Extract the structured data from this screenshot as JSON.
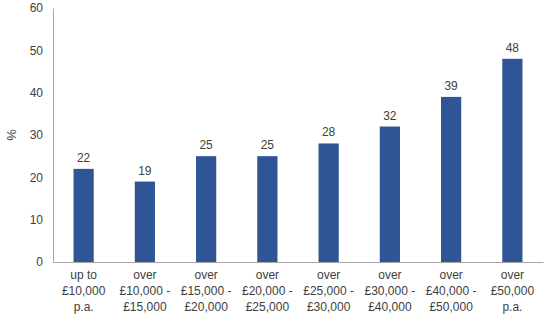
{
  "chart_data": {
    "type": "bar",
    "y_label": "%",
    "categories": [
      "up to\n£10,000\np.a.",
      "over\n£10,000 -\n£15,000",
      "over\n£15,000 -\n£20,000",
      "over\n£20,000 -\n£25,000",
      "over\n£25,000 -\n£30,000",
      "over\n£30,000 -\n£40,000",
      "over\n£40,000 -\n£50,000",
      "over\n£50,000\np.a."
    ],
    "values": [
      22,
      19,
      25,
      25,
      28,
      32,
      39,
      48
    ],
    "color": "#2f5597",
    "ylim": [
      0,
      60
    ],
    "yticks": [
      0,
      10,
      20,
      30,
      40,
      50,
      60
    ],
    "grid": false,
    "data_labels": true
  }
}
